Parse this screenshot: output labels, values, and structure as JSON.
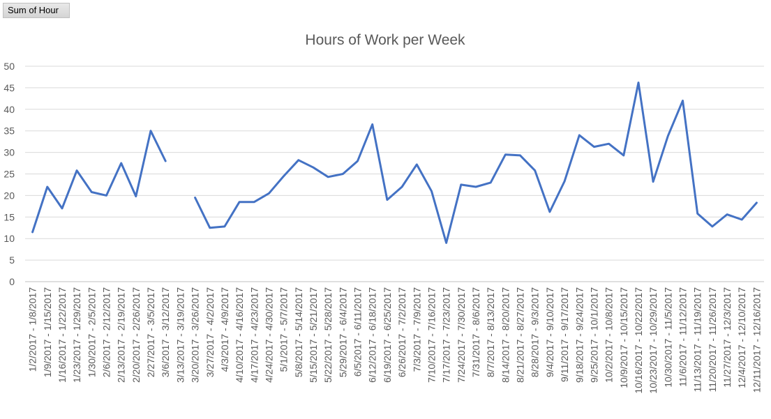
{
  "field_button": {
    "label": "Sum of Hour"
  },
  "chart_data": {
    "type": "line",
    "title": "Hours of Work per Week",
    "xlabel": "",
    "ylabel": "",
    "ylim": [
      0,
      50
    ],
    "yticks": [
      0,
      5,
      10,
      15,
      20,
      25,
      30,
      35,
      40,
      45,
      50
    ],
    "grid": true,
    "line_color": "#4472C4",
    "categories": [
      "1/2/2017 - 1/8/2017",
      "1/9/2017 - 1/15/2017",
      "1/16/2017 - 1/22/2017",
      "1/23/2017 - 1/29/2017",
      "1/30/2017 - 2/5/2017",
      "2/6/2017 - 2/12/2017",
      "2/13/2017 - 2/19/2017",
      "2/20/2017 - 2/26/2017",
      "2/27/2017 - 3/5/2017",
      "3/6/2017 - 3/12/2017",
      "3/13/2017 - 3/19/2017",
      "3/20/2017 - 3/26/2017",
      "3/27/2017 - 4/2/2017",
      "4/3/2017 - 4/9/2017",
      "4/10/2017 - 4/16/2017",
      "4/17/2017 - 4/23/2017",
      "4/24/2017 - 4/30/2017",
      "5/1/2017 - 5/7/2017",
      "5/8/2017 - 5/14/2017",
      "5/15/2017 - 5/21/2017",
      "5/22/2017 - 5/28/2017",
      "5/29/2017 - 6/4/2017",
      "6/5/2017 - 6/11/2017",
      "6/12/2017 - 6/18/2017",
      "6/19/2017 - 6/25/2017",
      "6/26/2017 - 7/2/2017",
      "7/3/2017 - 7/9/2017",
      "7/10/2017 - 7/16/2017",
      "7/17/2017 - 7/23/2017",
      "7/24/2017 - 7/30/2017",
      "7/31/2017 - 8/6/2017",
      "8/7/2017 - 8/13/2017",
      "8/14/2017 - 8/20/2017",
      "8/21/2017 - 8/27/2017",
      "8/28/2017 - 9/3/2017",
      "9/4/2017 - 9/10/2017",
      "9/11/2017 - 9/17/2017",
      "9/18/2017 - 9/24/2017",
      "9/25/2017 - 10/1/2017",
      "10/2/2017 - 10/8/2017",
      "10/9/2017 - 10/15/2017",
      "10/16/2017 - 10/22/2017",
      "10/23/2017 - 10/29/2017",
      "10/30/2017 - 11/5/2017",
      "11/6/2017 - 11/12/2017",
      "11/13/2017 - 11/19/2017",
      "11/20/2017 - 11/26/2017",
      "11/27/2017 - 12/3/2017",
      "12/4/2017 - 12/10/2017",
      "12/11/2017 - 12/16/2017"
    ],
    "values": [
      11.5,
      22,
      17,
      25.8,
      20.8,
      20,
      27.5,
      19.8,
      35,
      28,
      null,
      19.5,
      12.5,
      12.8,
      18.5,
      18.5,
      20.5,
      24.5,
      28.2,
      26.5,
      24.3,
      25,
      28,
      36.5,
      19,
      22,
      27.2,
      21,
      9,
      22.5,
      22,
      23,
      29.5,
      29.3,
      25.8,
      16.2,
      23.3,
      34,
      31.3,
      32,
      29.3,
      46.2,
      23.2,
      33.8,
      42,
      15.8,
      12.8,
      15.6,
      14.4,
      18.3
    ]
  }
}
